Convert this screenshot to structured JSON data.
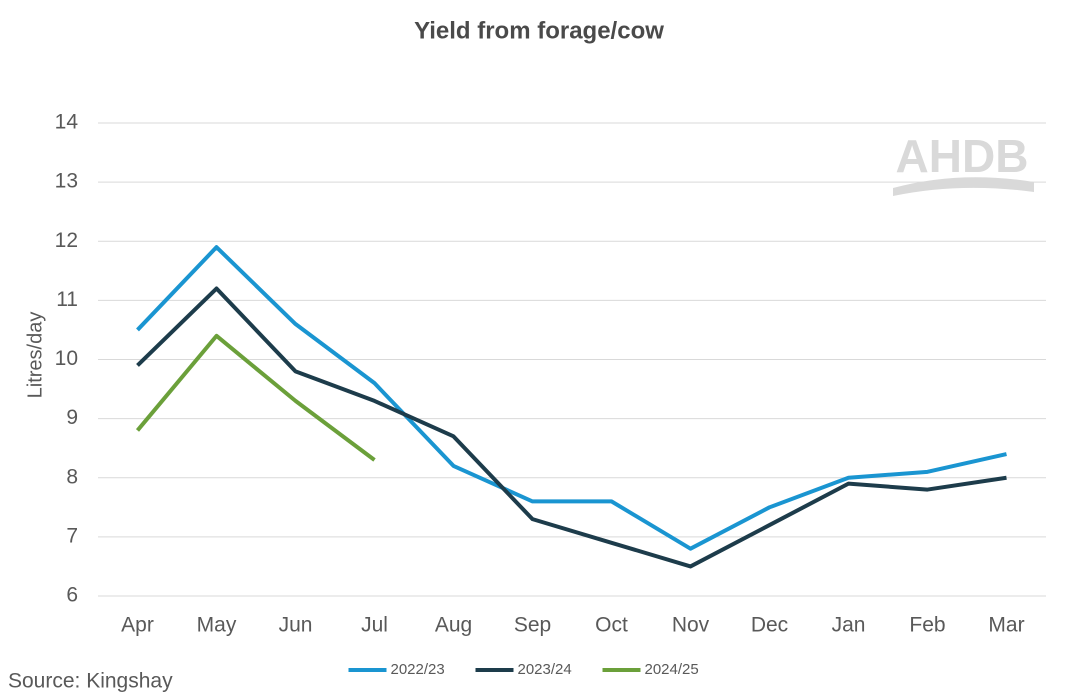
{
  "chart_data": {
    "type": "line",
    "title": "Yield from forage/cow",
    "y_label": "Litres/day",
    "source": "Source: Kingshay",
    "watermark": "AHDB",
    "categories": [
      "Apr",
      "May",
      "Jun",
      "Jul",
      "Aug",
      "Sep",
      "Oct",
      "Nov",
      "Dec",
      "Jan",
      "Feb",
      "Mar"
    ],
    "series": [
      {
        "name": "2022/23",
        "color": "#1a95d1",
        "values": [
          10.5,
          11.9,
          10.6,
          9.6,
          8.2,
          7.6,
          7.6,
          6.8,
          7.5,
          8.0,
          8.1,
          8.4
        ]
      },
      {
        "name": "2023/24",
        "color": "#1d3c4b",
        "values": [
          9.9,
          11.2,
          9.8,
          9.3,
          8.7,
          7.3,
          6.9,
          6.5,
          7.2,
          7.9,
          7.8,
          8.0
        ]
      },
      {
        "name": "2024/25",
        "color": "#6ba03a",
        "values": [
          8.8,
          10.4,
          9.3,
          8.3,
          null,
          null,
          null,
          null,
          null,
          null,
          null,
          null
        ]
      }
    ],
    "ylim": [
      6,
      14
    ],
    "yticks": [
      6,
      7,
      8,
      9,
      10,
      11,
      12,
      13,
      14
    ],
    "grid": true,
    "legend": "bottom"
  }
}
